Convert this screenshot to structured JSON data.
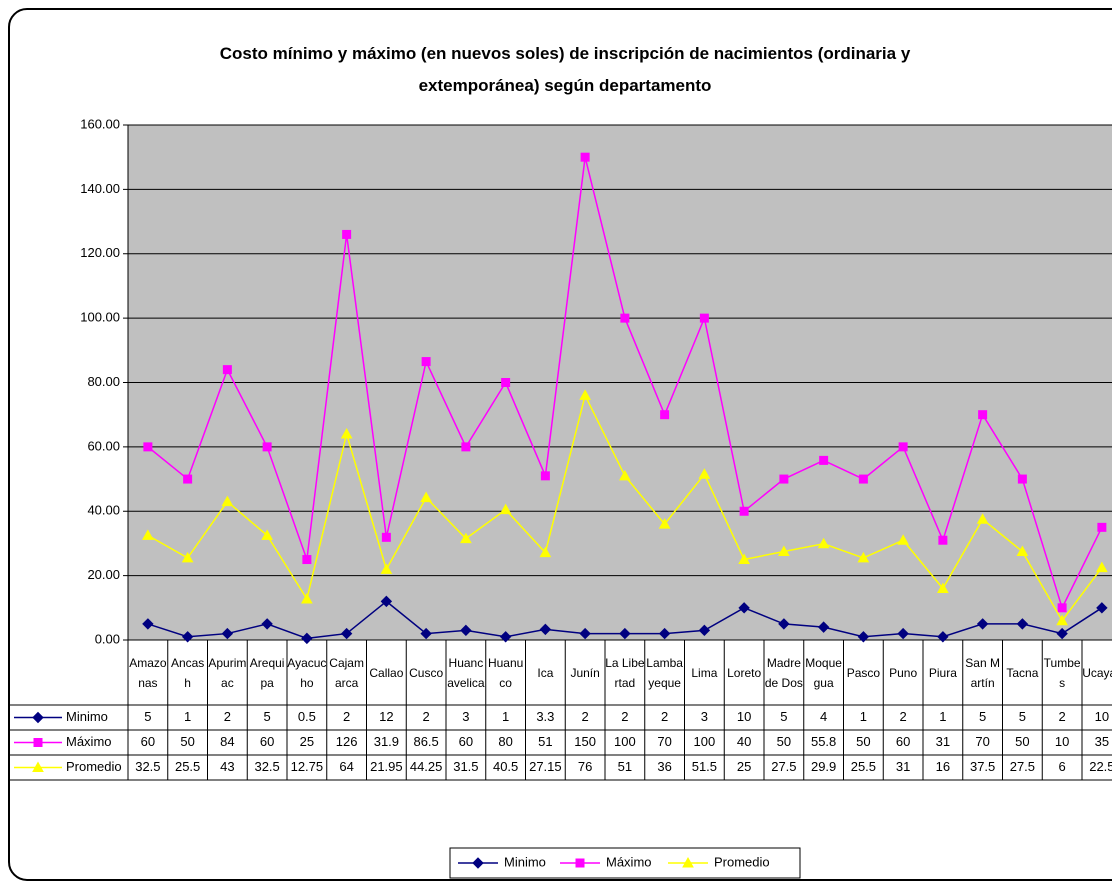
{
  "chart_data": {
    "type": "line",
    "title": "Costo mínimo y máximo (en nuevos soles) de inscripción de nacimientos (ordinaria y extemporánea) según departamento",
    "categories": [
      "Amazonas",
      "Ancash",
      "Apurimac",
      "Arequipa",
      "Ayacucho",
      "Cajamarca",
      "Callao",
      "Cusco",
      "Huancavelica",
      "Huanuco",
      "Ica",
      "Junín",
      "La Libertad",
      "Lambayeque",
      "Lima",
      "Loreto",
      "Madre de Dos",
      "Moquegua",
      "Pasco",
      "Puno",
      "Piura",
      "San Martín",
      "Tacna",
      "Tumbes",
      "Ucayali"
    ],
    "series": [
      {
        "name": "Minimo",
        "color": "#000080",
        "marker": "diamond",
        "values": [
          5,
          1,
          2,
          5,
          0.5,
          2,
          12,
          2,
          3,
          1,
          3.3,
          2,
          2,
          2,
          3,
          10,
          5,
          4,
          1,
          2,
          1,
          5,
          5,
          2,
          10
        ]
      },
      {
        "name": "Máximo",
        "color": "#FF00FF",
        "marker": "square",
        "values": [
          60,
          50,
          84,
          60,
          25,
          126,
          31.9,
          86.5,
          60,
          80,
          51,
          150,
          100,
          70,
          100,
          40,
          50,
          55.8,
          50,
          60,
          31,
          70,
          50,
          10,
          35
        ]
      },
      {
        "name": "Promedio",
        "color": "#FFFF00",
        "marker": "triangle",
        "values": [
          32.5,
          25.5,
          43,
          32.5,
          12.75,
          64,
          21.95,
          44.25,
          31.5,
          40.5,
          27.15,
          76,
          51,
          36,
          51.5,
          25,
          27.5,
          29.9,
          25.5,
          31,
          16,
          37.5,
          27.5,
          6,
          22.5
        ]
      }
    ],
    "ylim": [
      0,
      160
    ],
    "yticks": [
      {
        "value": 0,
        "label": "0.00"
      },
      {
        "value": 20,
        "label": "20.00"
      },
      {
        "value": 40,
        "label": "40.00"
      },
      {
        "value": 60,
        "label": "60.00"
      },
      {
        "value": 80,
        "label": "80.00"
      },
      {
        "value": 100,
        "label": "100.00"
      },
      {
        "value": 120,
        "label": "120.00"
      },
      {
        "value": 140,
        "label": "140.00"
      },
      {
        "value": 160,
        "label": "160.00"
      }
    ],
    "grid": true,
    "legend": "bottom"
  }
}
